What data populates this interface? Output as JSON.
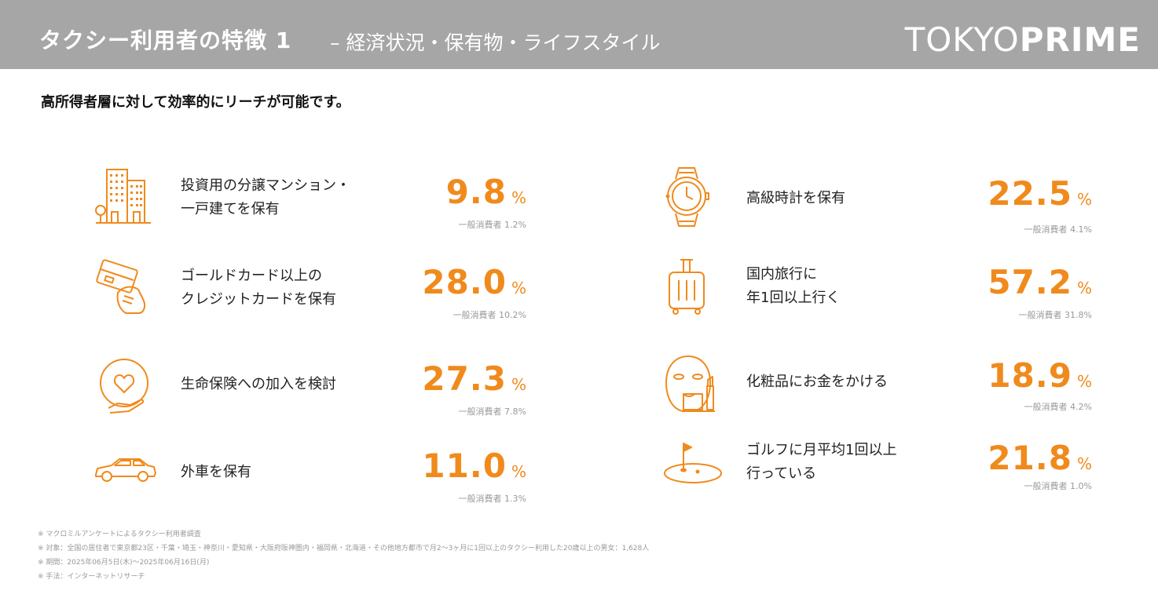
{
  "header": {
    "title": "タクシー利用者の特徴 1",
    "subtitle": "– 経済状況・保有物・ライフスタイル",
    "logo_light": "TOKYO",
    "logo_bold": "PRIME"
  },
  "subtitle": "高所得者層に対して効率的にリーチが可能です。",
  "colors": {
    "accent": "#f08a1c",
    "header_bg": "#a6a6a6"
  },
  "items": [
    {
      "icon": "building-icon",
      "label_lines": [
        "投資用の分譲マンション・",
        "一戸建てを保有"
      ],
      "value": "9.8",
      "unit": "%",
      "general": "一般消費者 1.2%"
    },
    {
      "icon": "credit-card-icon",
      "label_lines": [
        "ゴールドカード以上の",
        "クレジットカードを保有"
      ],
      "value": "28.0",
      "unit": "%",
      "general": "一般消費者 10.2%"
    },
    {
      "icon": "heart-insurance-icon",
      "label_lines": [
        "生命保険への加入を検討"
      ],
      "value": "27.3",
      "unit": "%",
      "general": "一般消費者 7.8%"
    },
    {
      "icon": "car-icon",
      "label_lines": [
        "外車を保有"
      ],
      "value": "11.0",
      "unit": "%",
      "general": "一般消費者 1.3%"
    },
    {
      "icon": "watch-icon",
      "label_lines": [
        "高級時計を保有"
      ],
      "value": "22.5",
      "unit": "%",
      "general": "一般消費者 4.1%"
    },
    {
      "icon": "suitcase-icon",
      "label_lines": [
        "国内旅行に",
        "年1回以上行く"
      ],
      "value": "57.2",
      "unit": "%",
      "general": "一般消費者 31.8%"
    },
    {
      "icon": "cosmetics-icon",
      "label_lines": [
        "化粧品にお金をかける"
      ],
      "value": "18.9",
      "unit": "%",
      "general": "一般消費者 4.2%"
    },
    {
      "icon": "golf-icon",
      "label_lines": [
        "ゴルフに月平均1回以上",
        "行っている"
      ],
      "value": "21.8",
      "unit": "%",
      "general": "一般消費者 1.0%"
    }
  ],
  "notes": [
    "※ マクロミルアンケートによるタクシー利用者調査",
    "※ 対象：全国の居住者で東京都23区・千葉・埼玉・神奈川・愛知県・大阪府阪神圏内・福岡県・北海道・その他地方都市で月2～3ヶ月に1回以上のタクシー利用した20歳以上の男女：1,628人",
    "※ 期間：2025年06月5日(木)～2025年06月16日(月)",
    "※ 手法：インターネットリサーチ"
  ]
}
